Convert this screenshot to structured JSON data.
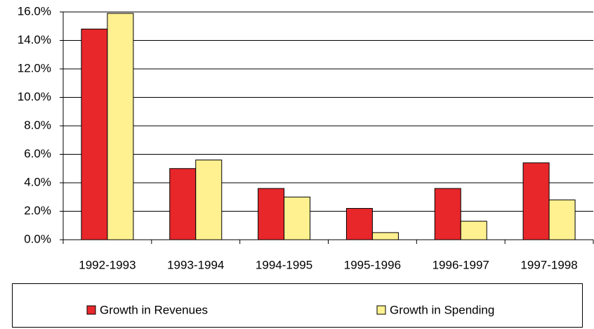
{
  "chart_data": {
    "type": "bar",
    "categories": [
      "1992-1993",
      "1993-1994",
      "1994-1995",
      "1995-1996",
      "1996-1997",
      "1997-1998"
    ],
    "series": [
      {
        "name": "Growth in Revenues",
        "color": "#e8272b",
        "values": [
          14.8,
          5.0,
          3.6,
          2.2,
          3.6,
          5.4
        ]
      },
      {
        "name": "Growth in Spending",
        "color": "#fff190",
        "values": [
          15.9,
          5.6,
          3.0,
          0.5,
          1.3,
          2.8
        ]
      }
    ],
    "ylim": [
      0,
      16
    ],
    "yticks": [
      {
        "value": 0,
        "label": "0.0%"
      },
      {
        "value": 2,
        "label": "2.0%"
      },
      {
        "value": 4,
        "label": "4.0%"
      },
      {
        "value": 6,
        "label": "6.0%"
      },
      {
        "value": 8,
        "label": "8.0%"
      },
      {
        "value": 10,
        "label": "10.0%"
      },
      {
        "value": 12,
        "label": "12.0%"
      },
      {
        "value": 14,
        "label": "14.0%"
      },
      {
        "value": 16,
        "label": "16.0%"
      }
    ],
    "grid": true,
    "legend": "bottom"
  }
}
